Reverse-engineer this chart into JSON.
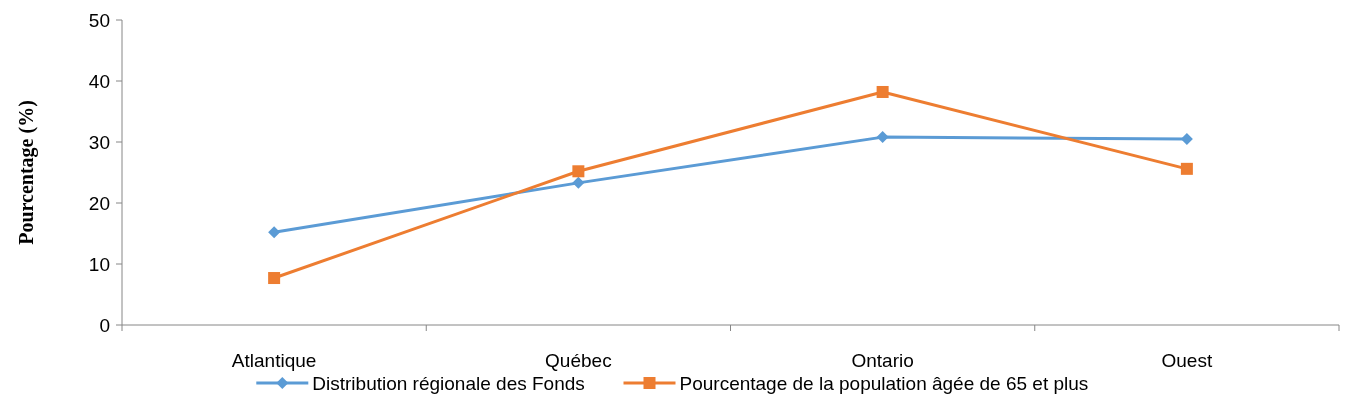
{
  "chart_data": {
    "type": "line",
    "ylabel": "Pourcentage (%)",
    "categories": [
      "Atlantique",
      "Québec",
      "Ontario",
      "Ouest"
    ],
    "series": [
      {
        "name": "Distribution régionale des Fonds",
        "color": "#5b9bd5",
        "marker": "diamond",
        "values": [
          15.2,
          23.3,
          30.8,
          30.5
        ]
      },
      {
        "name": "Pourcentage de la population âgée de 65 et plus",
        "color": "#ed7d31",
        "marker": "square",
        "values": [
          7.7,
          25.2,
          38.2,
          25.6
        ]
      }
    ],
    "ylim": [
      0,
      50
    ],
    "yticks": [
      0,
      10,
      20,
      30,
      40,
      50
    ],
    "legend": "bottom",
    "grid": false,
    "line_style": "solid"
  }
}
